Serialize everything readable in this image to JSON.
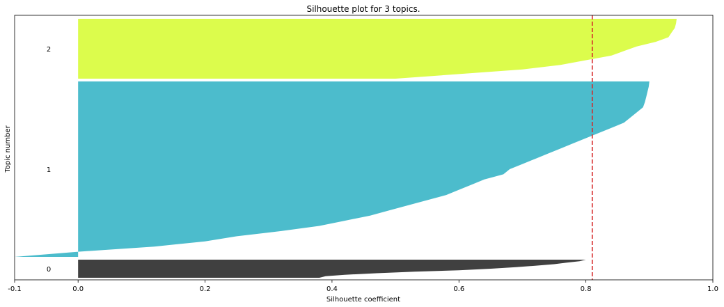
{
  "chart_data": {
    "type": "area",
    "title": "Silhouette plot for 3 topics.",
    "xlabel": "Silhouette coefficient",
    "ylabel": "Topic number",
    "xlim": [
      -0.1,
      1.0
    ],
    "xticks": [
      -0.1,
      0.0,
      0.2,
      0.4,
      0.6,
      0.8,
      1.0
    ],
    "xtick_labels": [
      "-0.1",
      "0.0",
      "0.2",
      "0.4",
      "0.6",
      "0.8",
      "1.0"
    ],
    "grid": false,
    "average_silhouette": 0.81,
    "average_line_color": "#d62728",
    "clusters": [
      {
        "label": "0",
        "color": "#404040",
        "sorted_values": [
          0.38,
          0.39,
          0.42,
          0.47,
          0.53,
          0.6,
          0.65,
          0.69,
          0.72,
          0.75,
          0.77,
          0.79,
          0.8
        ]
      },
      {
        "label": "1",
        "color": "#4cbccc",
        "sorted_values": [
          -0.1,
          0.0,
          0.12,
          0.2,
          0.25,
          0.32,
          0.38,
          0.42,
          0.46,
          0.49,
          0.52,
          0.55,
          0.58,
          0.6,
          0.62,
          0.64,
          0.67,
          0.68,
          0.7,
          0.72,
          0.74,
          0.76,
          0.78,
          0.8,
          0.82,
          0.84,
          0.86,
          0.87,
          0.88,
          0.89,
          0.893,
          0.895,
          0.897,
          0.899,
          0.9
        ]
      },
      {
        "label": "2",
        "color": "#dcfc4c",
        "sorted_values": [
          0.5,
          0.6,
          0.7,
          0.76,
          0.8,
          0.84,
          0.86,
          0.88,
          0.91,
          0.93,
          0.935,
          0.94,
          0.942,
          0.943
        ]
      }
    ]
  }
}
